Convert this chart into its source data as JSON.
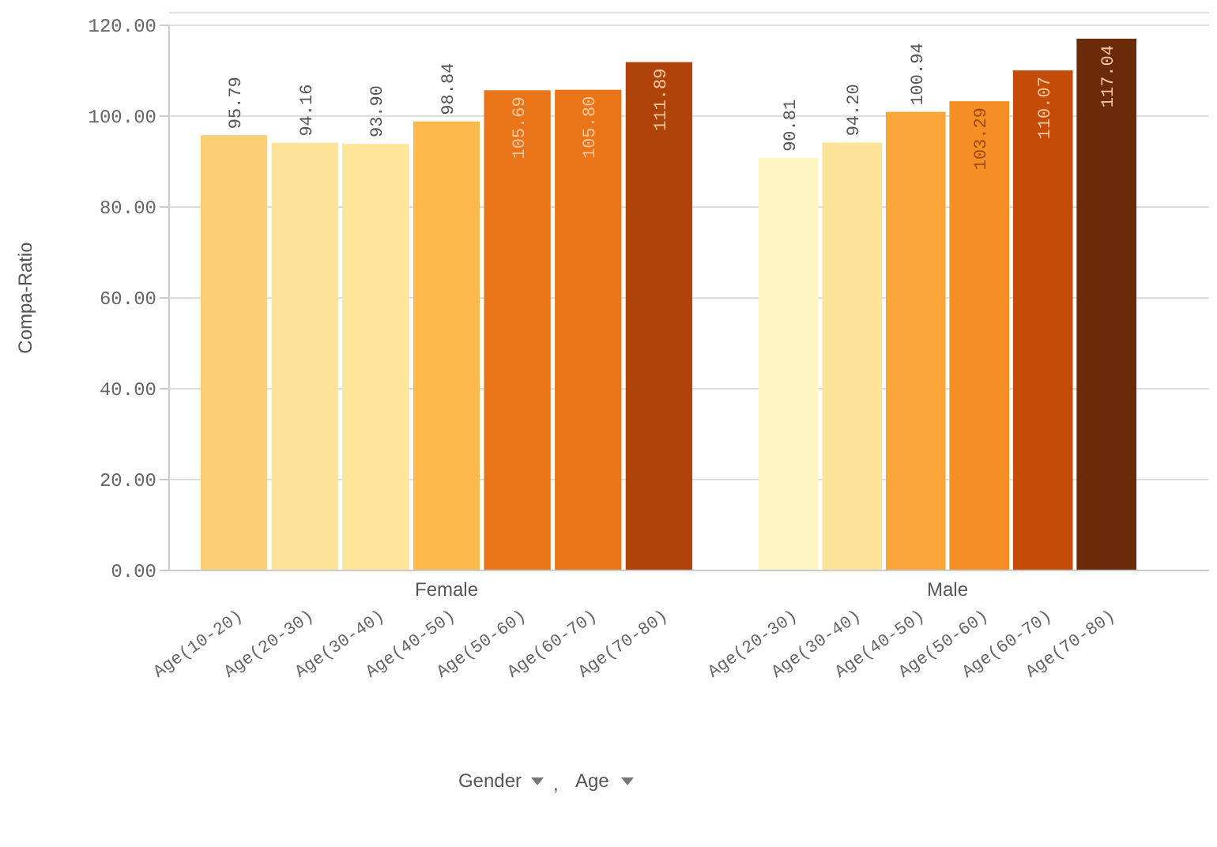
{
  "chart_data": [
    {
      "type": "bar",
      "ylabel": "Compa-Ratio",
      "xlabel": "Female",
      "categories": [
        "Age(10-20)",
        "Age(20-30)",
        "Age(30-40)",
        "Age(40-50)",
        "Age(50-60)",
        "Age(60-70)",
        "Age(70-80)"
      ],
      "values": [
        95.79,
        94.16,
        93.9,
        98.84,
        105.69,
        105.8,
        111.89
      ],
      "colors": [
        "#fdd076",
        "#fde397",
        "#fde59a",
        "#fcb84a",
        "#ea7418",
        "#ea7418",
        "#b0430a"
      ],
      "ylim": [
        0,
        120
      ],
      "yticks": [
        {
          "value": 0,
          "label": "0.00"
        },
        {
          "value": 20,
          "label": "20.00"
        },
        {
          "value": 40,
          "label": "40.00"
        },
        {
          "value": 60,
          "label": "60.00"
        },
        {
          "value": 80,
          "label": "80.00"
        },
        {
          "value": 100,
          "label": "100.00"
        },
        {
          "value": 120,
          "label": "120.00"
        }
      ],
      "grid": "y",
      "value_labels": [
        "95.79",
        "94.16",
        "93.90",
        "98.84",
        "105.69",
        "105.80",
        "111.89"
      ],
      "annotations": [
        "Gender , Age"
      ]
    },
    {
      "type": "bar",
      "xlabel": "Male",
      "categories": [
        "Age(20-30)",
        "Age(30-40)",
        "Age(40-50)",
        "Age(50-60)",
        "Age(60-70)",
        "Age(70-80)"
      ],
      "values": [
        90.81,
        94.2,
        100.94,
        103.29,
        110.07,
        117.04
      ],
      "colors": [
        "#fef5c0",
        "#fde397",
        "#f9a53a",
        "#f68e26",
        "#c54c08",
        "#6b2a08"
      ],
      "ylim": [
        0,
        120
      ],
      "yticks": [
        0,
        20,
        40,
        60,
        80,
        100,
        120
      ],
      "grid": "y",
      "value_labels": [
        "90.81",
        "94.20",
        "100.94",
        "103.29",
        "110.07",
        "117.04"
      ],
      "tick_labels": "x"
    }
  ]
}
